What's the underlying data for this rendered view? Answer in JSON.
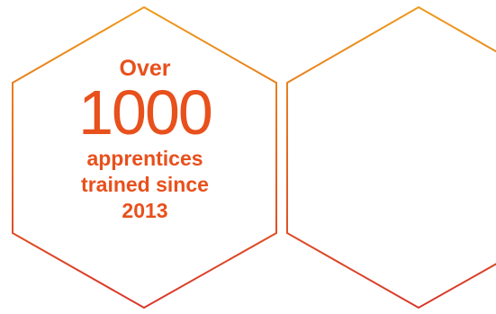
{
  "colors": {
    "accent_text": "#e8501c",
    "outline_top": "#ee9a1a",
    "outline_bottom": "#d8362a",
    "background": "#ffffff"
  },
  "stat": {
    "prefix": "Over",
    "number": "1000",
    "caption_line1": "apprentices",
    "caption_line2": "trained since",
    "caption_line3": "2013"
  }
}
